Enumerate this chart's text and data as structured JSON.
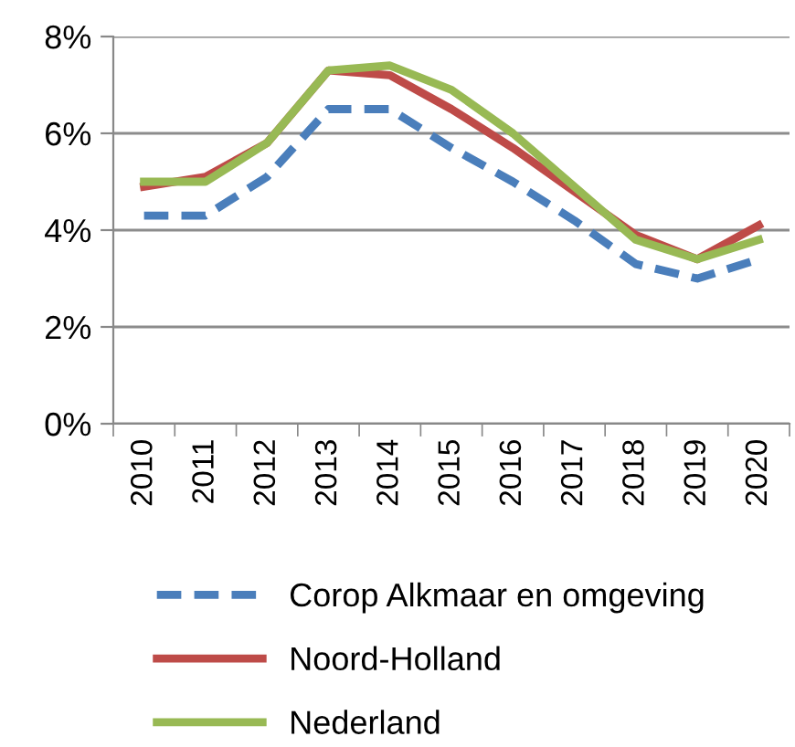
{
  "chart_data": {
    "type": "line",
    "categories": [
      "2010",
      "2011",
      "2012",
      "2013",
      "2014",
      "2015",
      "2016",
      "2017",
      "2018",
      "2019",
      "2020"
    ],
    "series": [
      {
        "name": "Corop Alkmaar en omgeving",
        "color": "#4a7ebb",
        "line_style": "dashed",
        "values": [
          4.3,
          4.3,
          5.1,
          6.5,
          6.5,
          5.7,
          5.0,
          4.2,
          3.3,
          3.0,
          3.4
        ]
      },
      {
        "name": "Noord-Holland",
        "color": "#be4b48",
        "line_style": "solid",
        "values": [
          4.9,
          5.1,
          5.8,
          7.3,
          7.2,
          6.5,
          5.7,
          4.8,
          3.9,
          3.4,
          4.1
        ]
      },
      {
        "name": "Nederland",
        "color": "#98b954",
        "line_style": "solid",
        "values": [
          5.0,
          5.0,
          5.8,
          7.3,
          7.4,
          6.9,
          6.0,
          4.9,
          3.8,
          3.4,
          3.8
        ]
      }
    ],
    "ylim": [
      0,
      8
    ],
    "yticks": [
      {
        "value": 0,
        "label": "0%"
      },
      {
        "value": 2,
        "label": "2%"
      },
      {
        "value": 4,
        "label": "4%"
      },
      {
        "value": 6,
        "label": "6%"
      },
      {
        "value": 8,
        "label": "8%"
      }
    ],
    "grid": "y",
    "legend": "bottom",
    "marker": "none"
  }
}
